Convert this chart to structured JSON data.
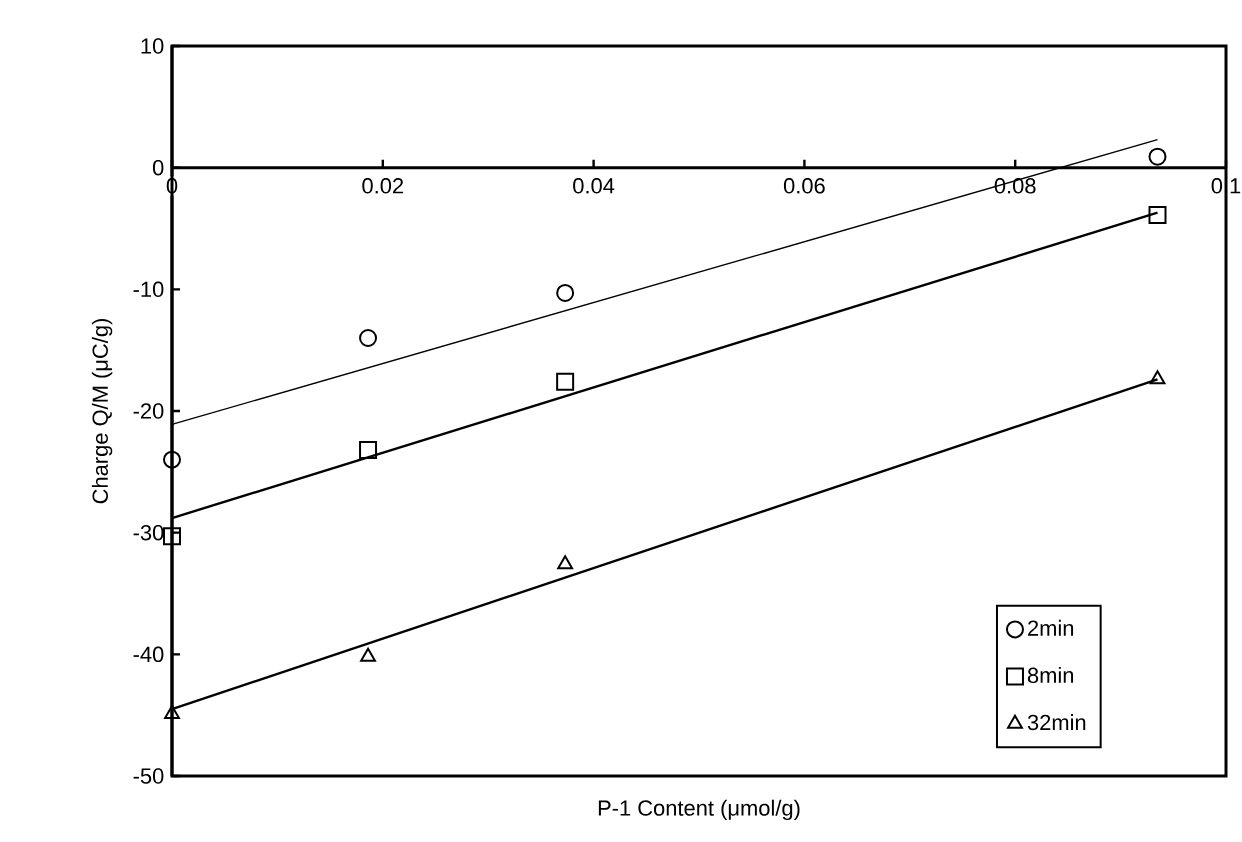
{
  "chart_data": {
    "type": "scatter",
    "xlabel": "P-1 Content (μmol/g)",
    "ylabel": "Charge Q/M (μC/g)",
    "xlim": [
      0,
      0.1
    ],
    "ylim": [
      -50,
      10
    ],
    "xticks": [
      0,
      0.02,
      0.04,
      0.06,
      0.08,
      0.1
    ],
    "yticks": [
      -50,
      -40,
      -30,
      -20,
      -10,
      0,
      10
    ],
    "grid": false,
    "legend": "bottom right",
    "series": [
      {
        "name": "2min",
        "color": "#000000",
        "marker": "circle",
        "x": [
          0,
          0.0186,
          0.0373,
          0.0935
        ],
        "values": [
          -24.0,
          -14.0,
          -10.3,
          0.9
        ]
      },
      {
        "name": "8min",
        "color": "#000000",
        "marker": "square",
        "x": [
          0,
          0.0186,
          0.0373,
          0.0935
        ],
        "values": [
          -30.3,
          -23.2,
          -17.6,
          -3.9
        ]
      },
      {
        "name": "32min",
        "color": "#000000",
        "marker": "triangle",
        "x": [
          0,
          0.0186,
          0.0373,
          0.0935
        ],
        "values": [
          -44.9,
          -40.2,
          -32.6,
          -17.4
        ]
      },
      {
        "type": "line",
        "color": "#000000",
        "marker": "none",
        "x": [
          0,
          0.0935
        ],
        "values": [
          -21.1,
          2.3
        ]
      },
      {
        "type": "line",
        "color": "#000000",
        "marker": "none",
        "x": [
          0,
          0.0935
        ],
        "values": [
          -28.8,
          -3.7
        ]
      },
      {
        "type": "line",
        "color": "#000000",
        "marker": "none",
        "x": [
          0,
          0.0935
        ],
        "values": [
          -44.5,
          -17.4
        ]
      }
    ]
  }
}
